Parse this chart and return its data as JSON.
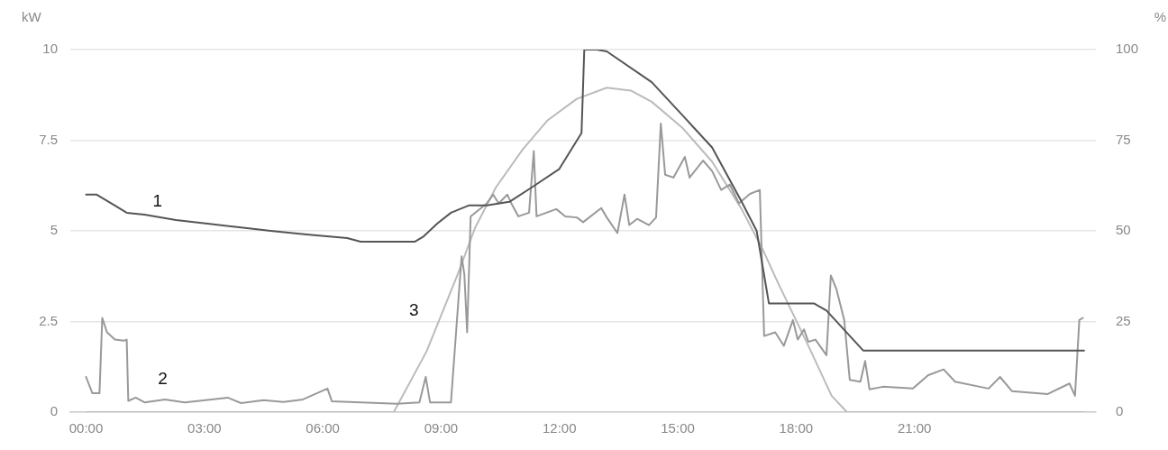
{
  "chart_data": {
    "type": "line",
    "ylabel": "kW",
    "y2label": "%",
    "xlim": [
      -0.4,
      25.6
    ],
    "xticks": [
      {
        "value": 0,
        "label": "00:00"
      },
      {
        "value": 3,
        "label": "03:00"
      },
      {
        "value": 6,
        "label": "06:00"
      },
      {
        "value": 9,
        "label": "09:00"
      },
      {
        "value": 12,
        "label": "12:00"
      },
      {
        "value": 15,
        "label": "15:00"
      },
      {
        "value": 18,
        "label": "18:00"
      },
      {
        "value": 21,
        "label": "21:00"
      }
    ],
    "ylim": [
      0,
      10
    ],
    "yticks": [
      0,
      2.5,
      5,
      7.5,
      10
    ],
    "y2lim": [
      0,
      100
    ],
    "y2ticks": [
      0,
      25,
      50,
      75,
      100
    ],
    "grid": "y",
    "legend": false,
    "marker": "none",
    "line_style": "solid",
    "series": [
      {
        "name": "1",
        "color": "#555555",
        "axis": "y2",
        "x": [
          0,
          0.27,
          0.73,
          1.03,
          1.48,
          2.28,
          3.08,
          3.88,
          4.68,
          5.59,
          6.62,
          6.96,
          8.33,
          8.56,
          8.9,
          9.25,
          9.7,
          10.16,
          10.73,
          11.3,
          11.99,
          12.56,
          12.63,
          12.95,
          13.2,
          14.34,
          15.11,
          15.87,
          16.62,
          17.0,
          17.31,
          18.45,
          18.77,
          19.7,
          25.3
        ],
        "values": [
          60,
          60,
          57,
          55,
          54.5,
          53,
          52,
          51,
          50,
          49,
          48,
          47,
          47,
          48.5,
          52,
          55,
          57,
          57,
          58,
          62,
          67,
          77,
          100,
          100,
          99.5,
          91,
          82,
          73,
          58,
          50,
          30,
          30,
          28,
          17,
          17
        ]
      },
      {
        "name": "2",
        "color": "#999999",
        "x": [
          0,
          0.16,
          0.34,
          0.41,
          0.53,
          0.73,
          0.96,
          1.03,
          1.07,
          1.26,
          1.48,
          2.0,
          2.5,
          3.59,
          3.93,
          4.5,
          5.0,
          5.5,
          6.12,
          6.23,
          7.88,
          8.45,
          8.61,
          8.72,
          9.18,
          9.25,
          9.52,
          9.59,
          9.66,
          9.75,
          10.16,
          10.32,
          10.46,
          10.68,
          10.78,
          10.96,
          11.23,
          11.35,
          11.42,
          11.92,
          12.15,
          12.44,
          12.6,
          13.06,
          13.2,
          13.47,
          13.65,
          13.77,
          13.97,
          14.27,
          14.45,
          14.57,
          14.68,
          14.89,
          15.18,
          15.3,
          15.64,
          15.87,
          16.1,
          16.32,
          16.55,
          16.83,
          17.08,
          17.19,
          17.47,
          17.69,
          17.92,
          18.04,
          18.2,
          18.31,
          18.49,
          18.77,
          18.88,
          19.02,
          19.22,
          19.36,
          19.63,
          19.75,
          19.86,
          20.2,
          20.96,
          21.35,
          21.74,
          22.03,
          22.88,
          23.17,
          23.47,
          24.38,
          24.93,
          25.07,
          25.18,
          25.27
        ],
        "values": [
          0.97,
          0.52,
          0.52,
          2.6,
          2.2,
          2.0,
          1.97,
          2.0,
          0.31,
          0.4,
          0.27,
          0.35,
          0.27,
          0.4,
          0.25,
          0.33,
          0.28,
          0.35,
          0.65,
          0.3,
          0.23,
          0.27,
          0.97,
          0.27,
          0.27,
          0.27,
          4.3,
          3.8,
          2.2,
          5.4,
          5.76,
          6.0,
          5.76,
          6.0,
          5.76,
          5.4,
          5.5,
          7.2,
          5.4,
          5.6,
          5.4,
          5.37,
          5.24,
          5.63,
          5.37,
          4.94,
          6.0,
          5.16,
          5.33,
          5.16,
          5.37,
          7.96,
          6.55,
          6.47,
          7.04,
          6.47,
          6.94,
          6.65,
          6.13,
          6.28,
          5.76,
          6.02,
          6.13,
          2.1,
          2.2,
          1.83,
          2.54,
          2.0,
          2.28,
          1.94,
          2.0,
          1.57,
          3.77,
          3.4,
          2.54,
          0.89,
          0.84,
          1.41,
          0.63,
          0.7,
          0.65,
          1.02,
          1.18,
          0.84,
          0.65,
          0.97,
          0.58,
          0.5,
          0.79,
          0.45,
          2.54,
          2.6
        ]
      },
      {
        "name": "3",
        "color": "#bbbbbb",
        "x": [
          0,
          7.8,
          8.63,
          9.41,
          9.86,
          10.39,
          11.07,
          11.69,
          12.44,
          13.2,
          13.81,
          14.34,
          15.11,
          15.87,
          16.62,
          17.17,
          17.53,
          18.31,
          18.9,
          19.29,
          25.3
        ],
        "values": [
          0,
          0,
          1.67,
          3.77,
          5.08,
          6.2,
          7.25,
          8.04,
          8.64,
          8.95,
          8.87,
          8.56,
          7.85,
          6.91,
          5.6,
          4.45,
          3.59,
          1.83,
          0.45,
          0,
          0
        ]
      }
    ]
  }
}
